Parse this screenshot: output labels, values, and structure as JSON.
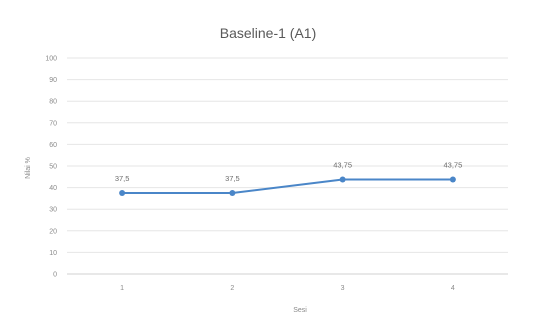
{
  "chart_data": {
    "type": "line",
    "title": "Baseline-1 (A1)",
    "xlabel": "Sesi",
    "ylabel": "Nilai %",
    "categories": [
      "1",
      "2",
      "3",
      "4"
    ],
    "series": [
      {
        "values": [
          37.5,
          37.5,
          43.75,
          43.75
        ],
        "color": "#4a86c8"
      }
    ],
    "data_labels": [
      "37,5",
      "37,5",
      "43,75",
      "43,75"
    ],
    "ylim": [
      0,
      100
    ],
    "yticks": [
      0,
      10,
      20,
      30,
      40,
      50,
      60,
      70,
      80,
      90,
      100
    ],
    "grid": true,
    "legend": "none"
  }
}
